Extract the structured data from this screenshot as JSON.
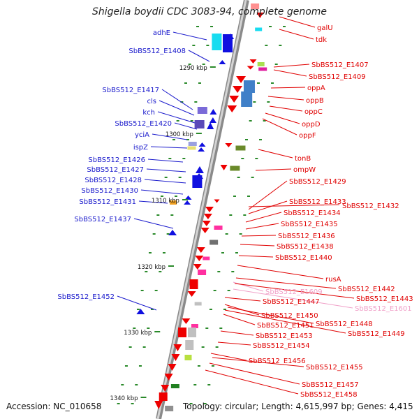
{
  "title": "Shigella boydii CDC 3083-94, complete genome",
  "footer": {
    "accession": "Accession: NC_010658",
    "topology": "Topology: circular; Length: 4,615,997 bp; Genes: 4,415"
  },
  "scale_labels": [
    "1290 kbp",
    "1300 kbp",
    "1310 kbp",
    "1320 kbp",
    "1330 kbp",
    "1340 kbp"
  ],
  "left_labels": [
    "adhE",
    "SbBS512_E1408",
    "SbBS512_E1417",
    "cls",
    "kch",
    "SbBS512_E1420",
    "yciA",
    "ispZ",
    "SbBS512_E1426",
    "SbBS512_E1427",
    "SbBS512_E1428",
    "SbBS512_E1430",
    "SbBS512_E1431",
    "SbBS512_E1437",
    "SbBS512_E1452"
  ],
  "right_labels": [
    "galU",
    "tdk",
    "SbBS512_E1407",
    "SbBS512_E1409",
    "oppA",
    "oppB",
    "oppC",
    "oppD",
    "oppF",
    "tonB",
    "ompW",
    "SbBS512_E1429",
    "SbBS512_E1433",
    "SbBS512_E1432",
    "SbBS512_E1434",
    "SbBS512_E1435",
    "SbBS512_E1436",
    "SbBS512_E1438",
    "SbBS512_E1440",
    "rusA",
    "SbBS512_E1442",
    "SbBS512_E1609",
    "SbBS512_E1443",
    "SbBS512_E1447",
    "SbBS512_E1601",
    "SbBS512_E1450",
    "SbBS512_E1448",
    "SbBS512_E1451",
    "SbBS512_E1449",
    "SbBS512_E1453",
    "SbBS512_E1454",
    "SbBS512_E1456",
    "SbBS512_E1455",
    "SbBS512_E1457",
    "SbBS512_E1458"
  ],
  "colors": {
    "forward_label": "#1a1acc",
    "reverse_label": "#e00000",
    "pseudo_label": "#f0a0c8",
    "forward_gene": "#1010e0",
    "reverse_gene": "#ee0000",
    "backbone": "#a8a8a8",
    "tick": "#2a8a2a"
  }
}
